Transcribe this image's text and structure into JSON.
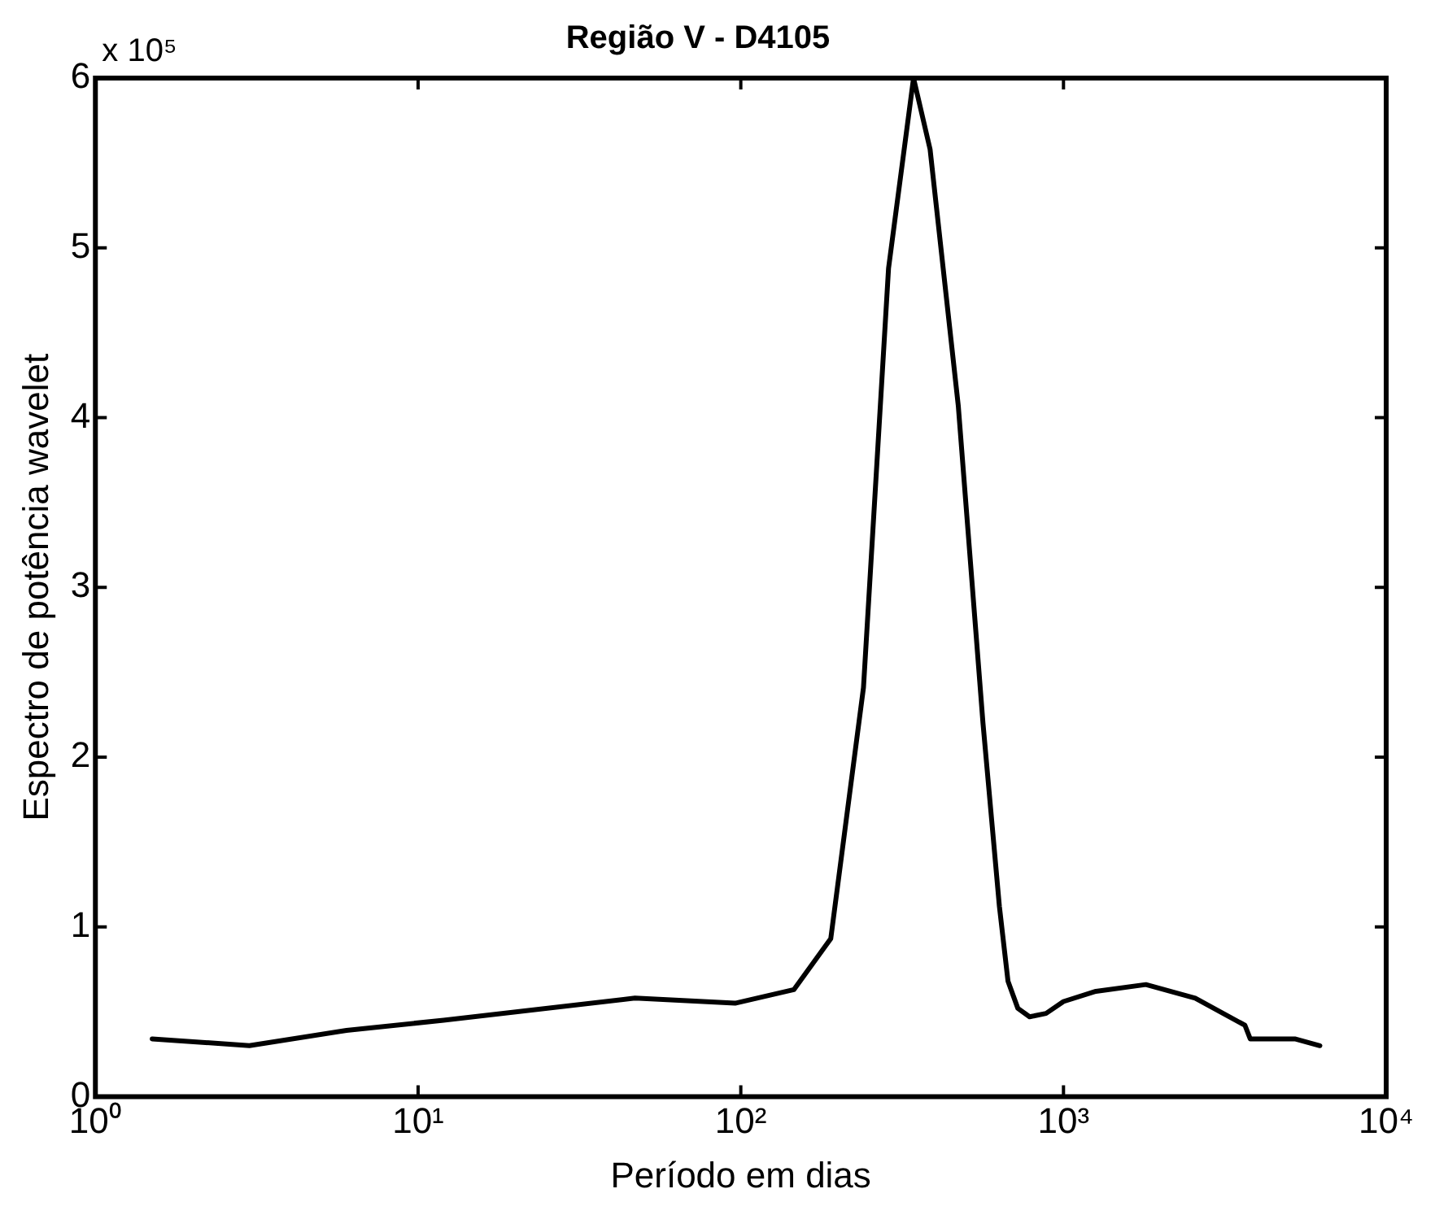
{
  "chart_data": {
    "type": "line",
    "title": "Região V - D4105",
    "xlabel": "Período em dias",
    "ylabel": "Espectro de potência wavelet",
    "annotations": [
      "x 10⁵"
    ],
    "x": [
      1.5,
      3,
      6,
      12,
      47,
      96,
      146,
      190,
      240,
      287,
      343,
      386,
      472,
      563,
      633,
      673,
      722,
      785,
      883,
      1000,
      1260,
      1800,
      2560,
      3650,
      3790,
      5210,
      6230
    ],
    "series": [
      {
        "color": "#000000",
        "values": [
          0.34,
          0.3,
          0.39,
          0.45,
          0.58,
          0.55,
          0.63,
          0.93,
          2.41,
          4.88,
          6.0,
          5.58,
          4.07,
          2.2,
          1.12,
          0.68,
          0.52,
          0.47,
          0.49,
          0.56,
          0.62,
          0.66,
          0.58,
          0.42,
          0.34,
          0.34,
          0.3
        ]
      }
    ],
    "log": "x",
    "xlim": [
      1,
      10000
    ],
    "xticks": [
      {
        "value": 1,
        "label": "10⁰"
      },
      {
        "value": 10,
        "label": "10¹"
      },
      {
        "value": 100,
        "label": "10²"
      },
      {
        "value": 1000,
        "label": "10³"
      },
      {
        "value": 10000,
        "label": "10⁴"
      }
    ],
    "ylim": [
      0,
      6
    ],
    "yticks": [
      0,
      1,
      2,
      3,
      4,
      5,
      6
    ],
    "grid": false,
    "legend": false,
    "marker": "none",
    "line_style": "solid"
  }
}
